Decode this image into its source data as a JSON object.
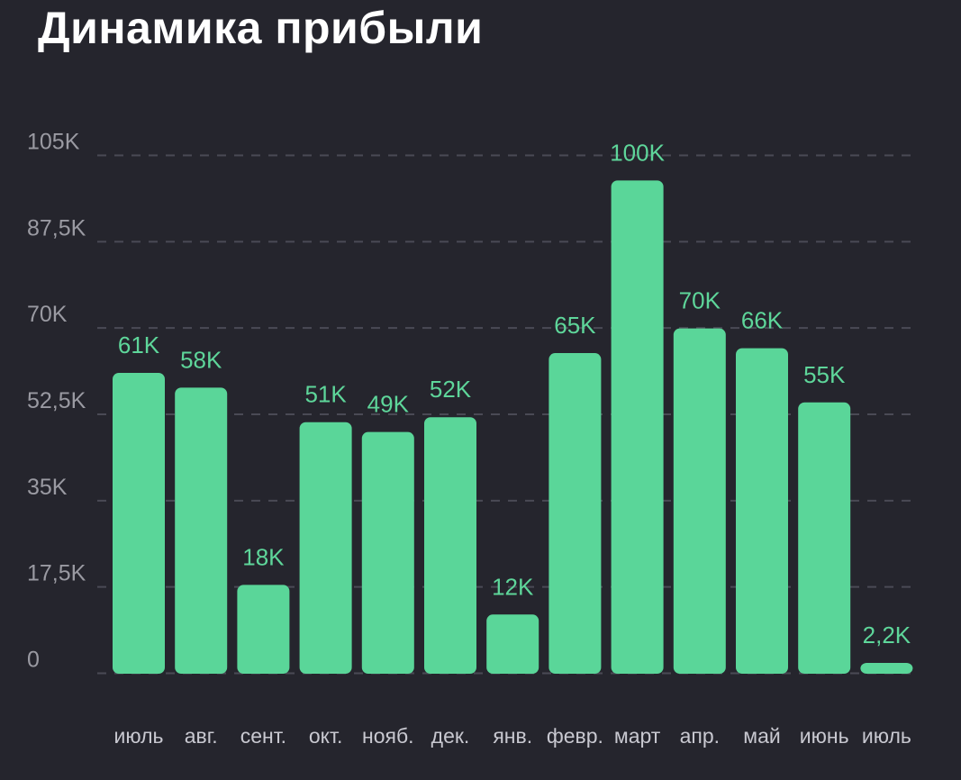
{
  "colors": {
    "background": "#25252d",
    "bar": "#5ad699",
    "label": "#5ed69a",
    "grid": "#4a4a55"
  },
  "chart_data": {
    "type": "bar",
    "title": "Динамика прибыли",
    "categories": [
      "июль",
      "авг.",
      "сент.",
      "окт.",
      "нояб.",
      "дек.",
      "янв.",
      "февр.",
      "март",
      "апр.",
      "май",
      "июнь",
      "июль"
    ],
    "values": [
      61000,
      58000,
      18000,
      51000,
      49000,
      52000,
      12000,
      65000,
      100000,
      70000,
      66000,
      55000,
      2200
    ],
    "value_labels": [
      "61K",
      "58K",
      "18K",
      "51K",
      "49K",
      "52K",
      "12K",
      "65K",
      "100K",
      "70K",
      "66K",
      "55K",
      "2,2K"
    ],
    "yticks": [
      0,
      17500,
      35000,
      52500,
      70000,
      87500,
      105000
    ],
    "ytick_labels": [
      "0",
      "17,5K",
      "35K",
      "52,5K",
      "70K",
      "87,5K",
      "105K"
    ],
    "ylim": [
      0,
      105000
    ],
    "grid": true,
    "legend": false,
    "xlabel": "",
    "ylabel": ""
  }
}
